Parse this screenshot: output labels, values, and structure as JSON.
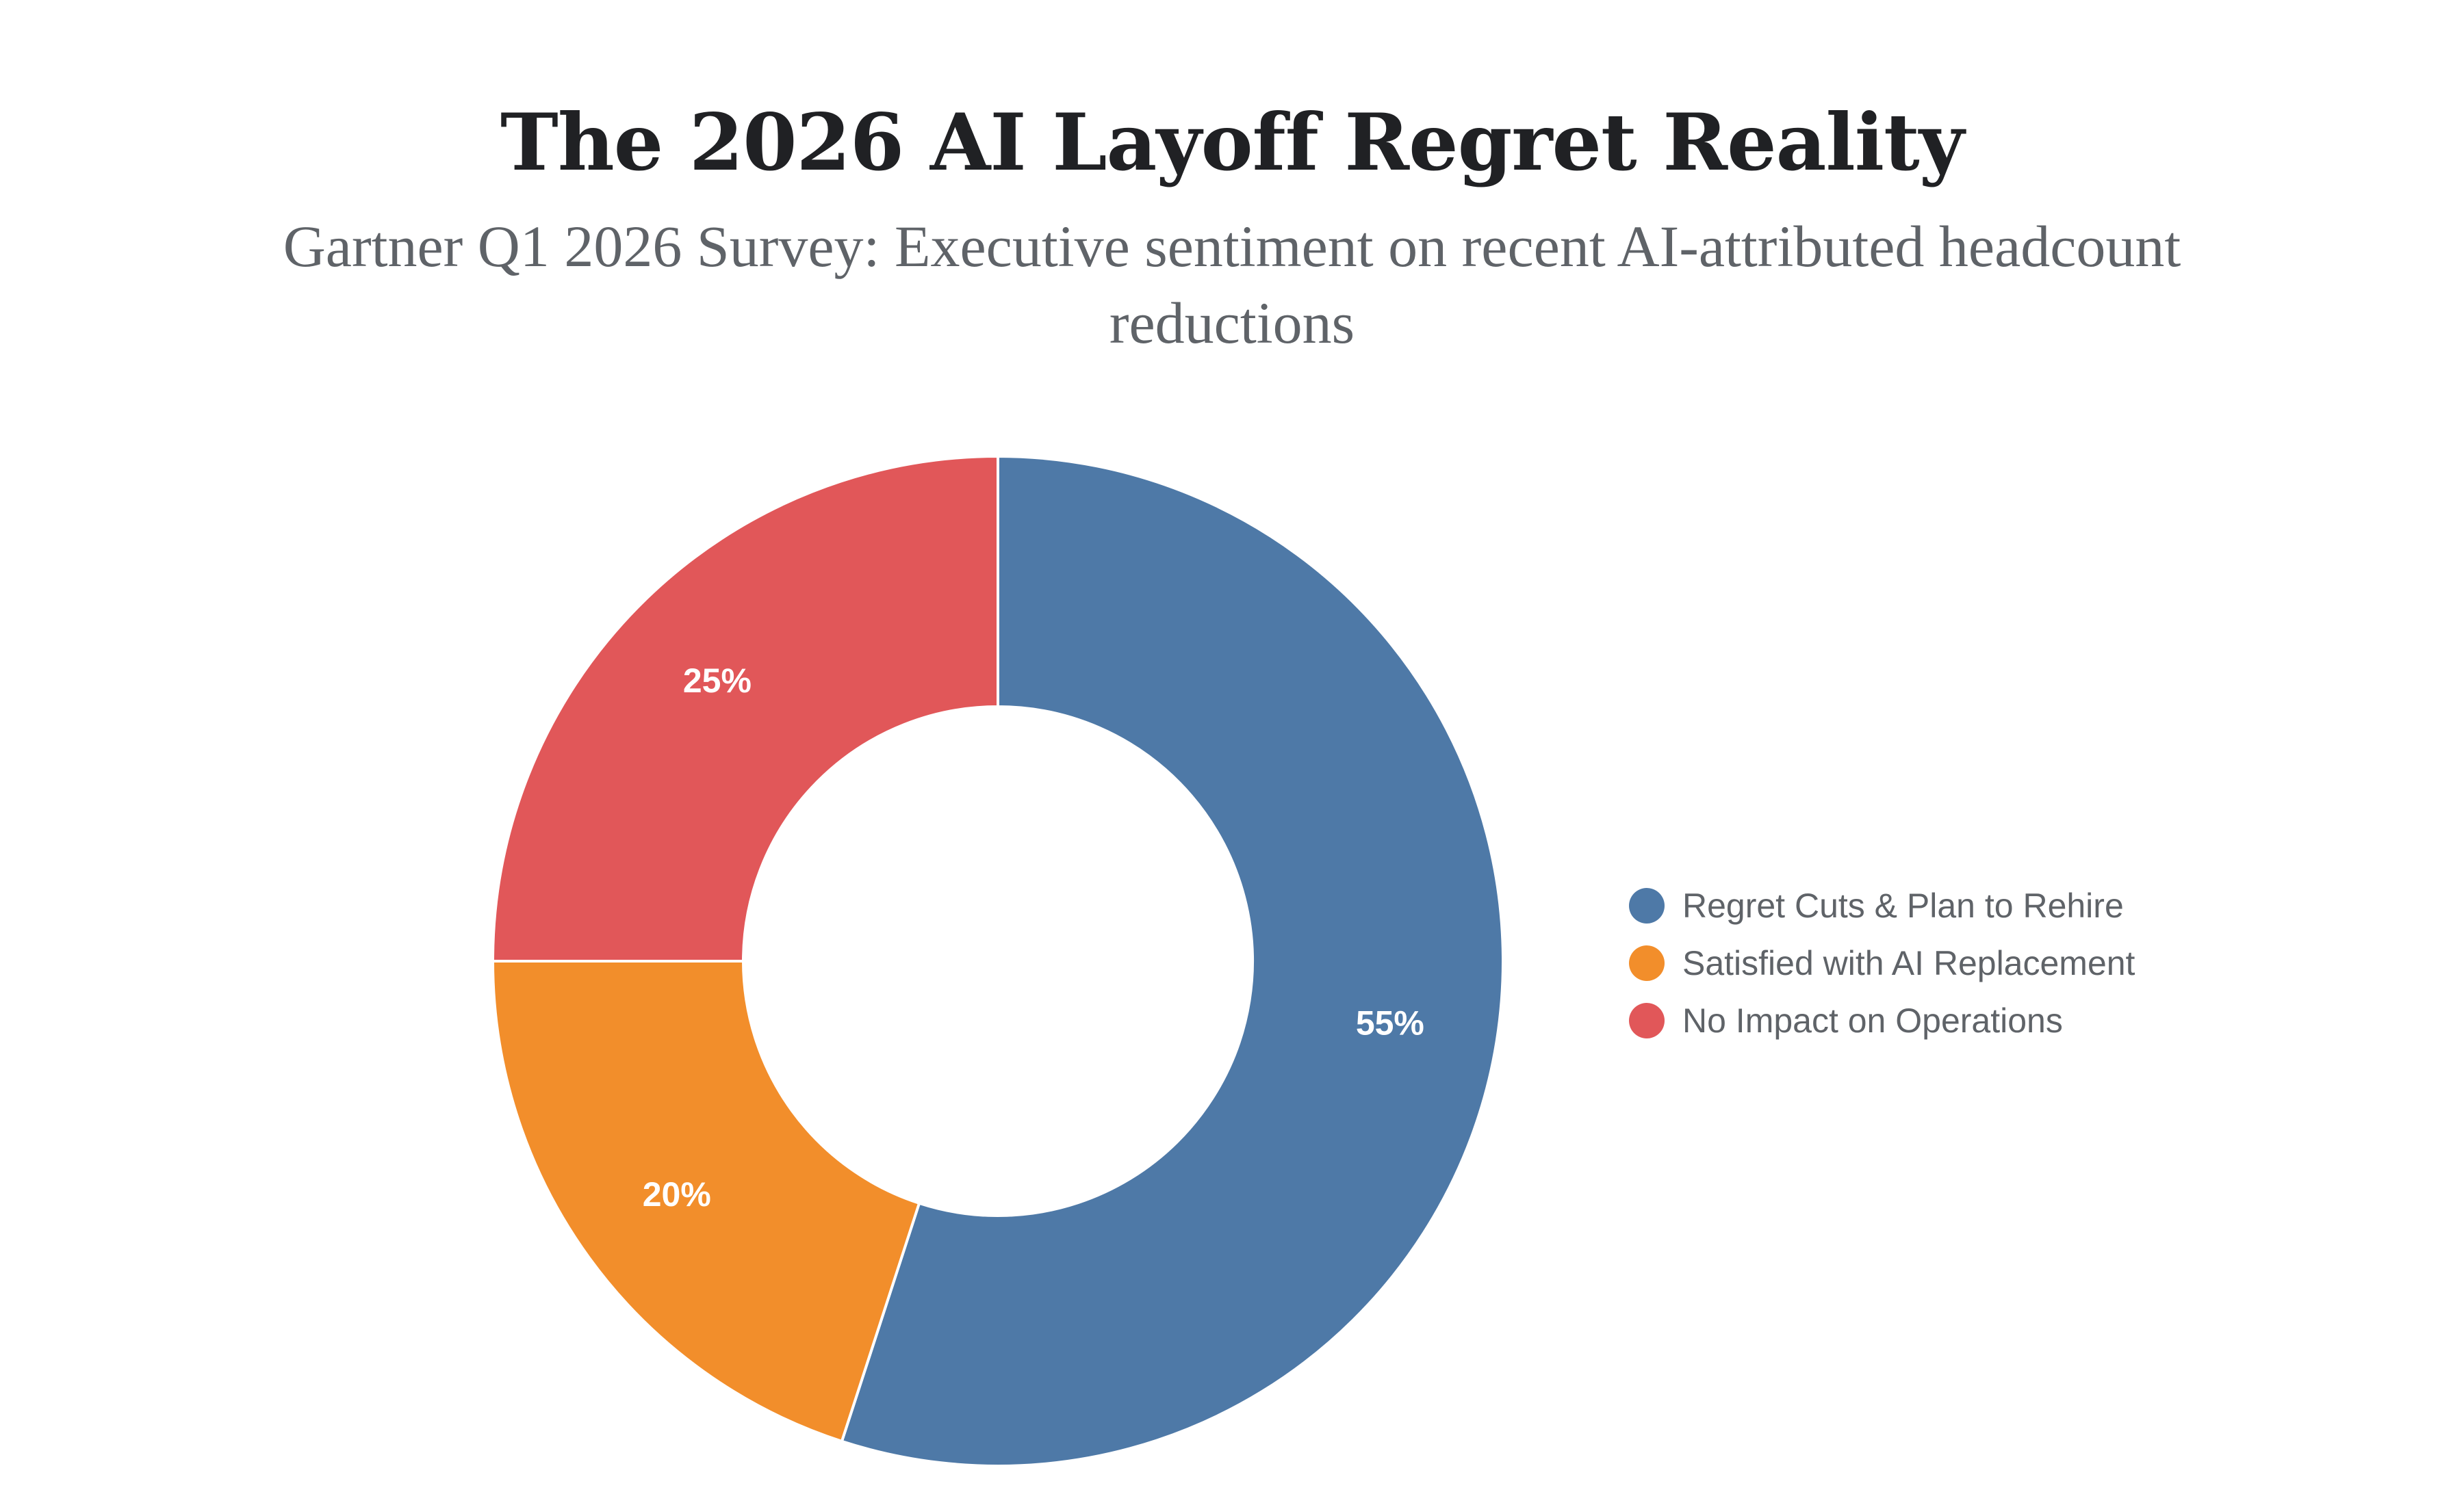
{
  "chart_data": {
    "type": "pie",
    "variant": "donut",
    "title": "The 2026 AI Layoff Regret Reality",
    "subtitle": "Gartner Q1 2026 Survey: Executive sentiment on recent AI-attributed headcount reductions",
    "categories": [
      "Regret Cuts & Plan to Rehire",
      "Satisfied with AI Replacement",
      "No Impact on Operations"
    ],
    "values": [
      55,
      20,
      25
    ],
    "labels": [
      "55%",
      "20%",
      "25%"
    ],
    "colors": [
      "#4e79a7",
      "#f28e2b",
      "#e15759"
    ],
    "legend_position": "right"
  }
}
